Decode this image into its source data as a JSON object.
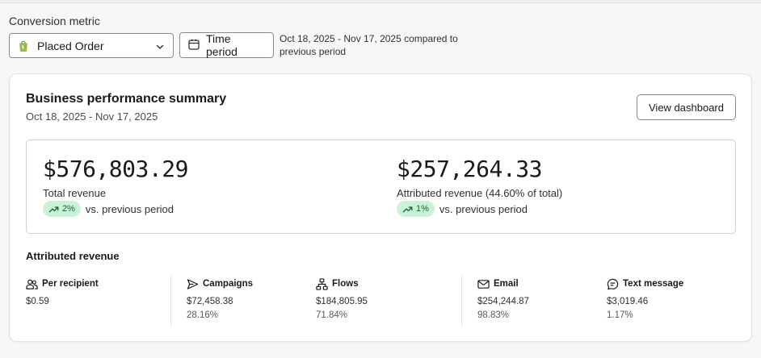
{
  "filters": {
    "metric_label": "Conversion metric",
    "metric_value": "Placed Order",
    "time_button": "Time period",
    "period_text": "Oct 18, 2025 - Nov 17, 2025 compared to previous period"
  },
  "summary": {
    "title": "Business performance summary",
    "date_range": "Oct 18, 2025 - Nov 17, 2025",
    "view_button": "View dashboard"
  },
  "kpis": [
    {
      "value": "$576,803.29",
      "label": "Total revenue",
      "change": "2%",
      "change_text": "vs. previous period"
    },
    {
      "value": "$257,264.33",
      "label": "Attributed revenue (44.60% of total)",
      "change": "1%",
      "change_text": "vs. previous period"
    }
  ],
  "attributed": {
    "title": "Attributed revenue",
    "items": [
      {
        "label": "Per recipient",
        "icon": "people-icon",
        "value": "$0.59",
        "pct": ""
      },
      {
        "label": "Campaigns",
        "icon": "send-icon",
        "value": "$72,458.38",
        "pct": "28.16%"
      },
      {
        "label": "Flows",
        "icon": "flows-icon",
        "value": "$184,805.95",
        "pct": "71.84%"
      },
      {
        "label": "Email",
        "icon": "mail-icon",
        "value": "$254,244.87",
        "pct": "98.83%"
      },
      {
        "label": "Text message",
        "icon": "message-icon",
        "value": "$3,019.46",
        "pct": "1.17%"
      }
    ]
  },
  "colors": {
    "badge_bg": "#c9f2d6",
    "badge_text": "#1a5c34",
    "shopify_green": "#95bf47"
  }
}
